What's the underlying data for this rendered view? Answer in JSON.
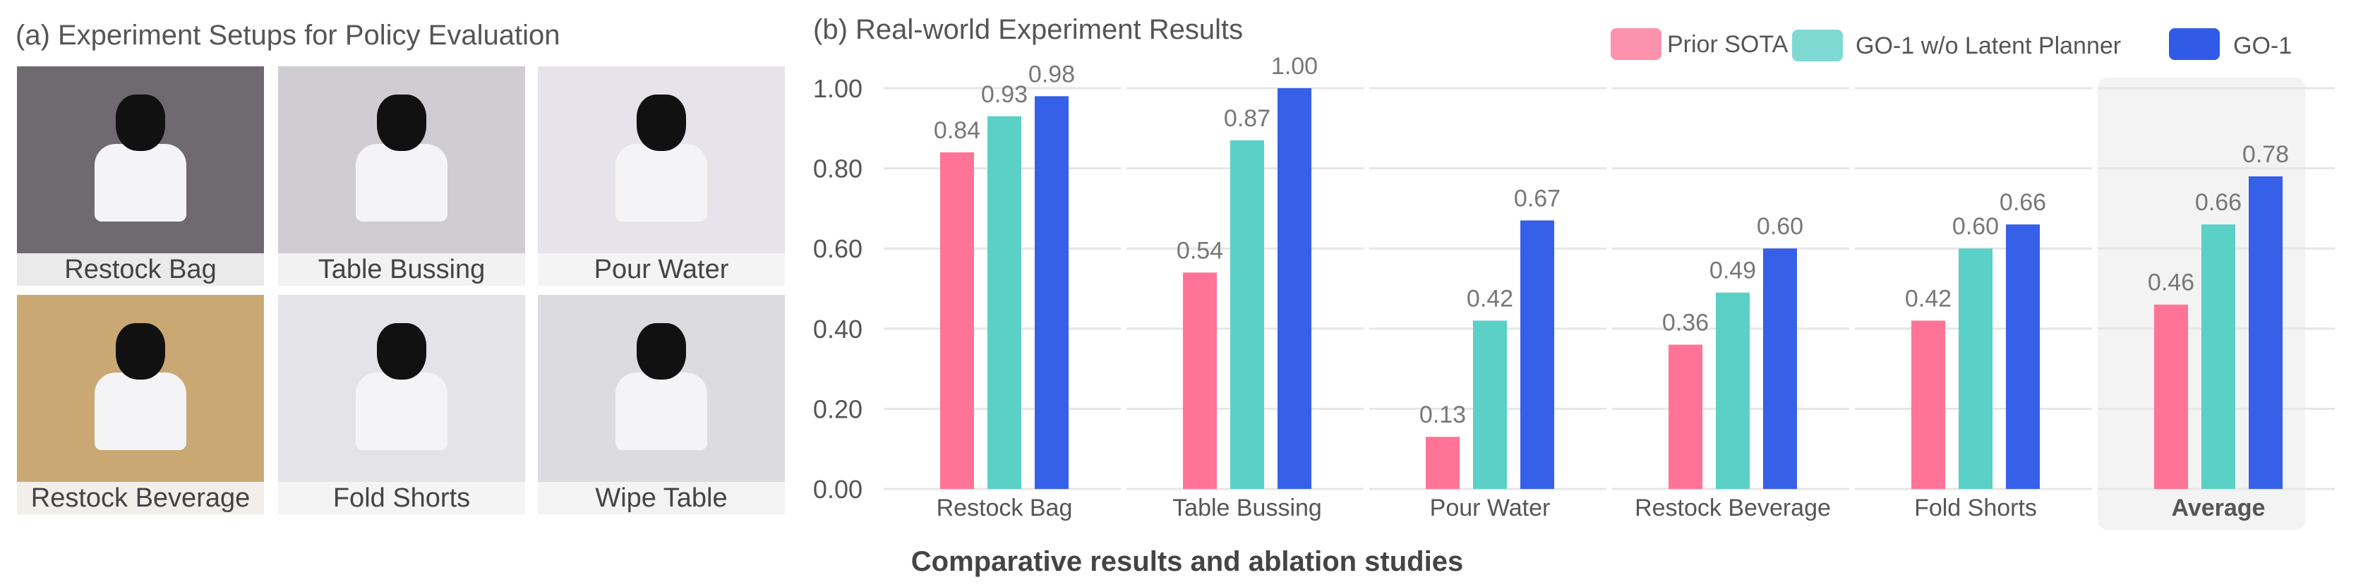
{
  "panel_a": {
    "title": "(a) Experiment Setups for Policy Evaluation",
    "photos": [
      {
        "label": "Restock Bag",
        "bg": "#6f6a70"
      },
      {
        "label": "Table Bussing",
        "bg": "#cfcdd2"
      },
      {
        "label": "Pour Water",
        "bg": "#e6e4ea"
      },
      {
        "label": "Restock Beverage",
        "bg": "#c9a873"
      },
      {
        "label": "Fold Shorts",
        "bg": "#e4e3e8"
      },
      {
        "label": "Wipe Table",
        "bg": "#dcdbe0"
      }
    ]
  },
  "chart_data": {
    "type": "bar",
    "title": "(b) Real-world Experiment Results",
    "caption": "Comparative results and ablation studies",
    "categories": [
      "Restock Bag",
      "Table Bussing",
      "Pour Water",
      "Restock Beverage",
      "Fold Shorts",
      "Average"
    ],
    "highlighted_category": "Average",
    "series": [
      {
        "name": "Prior SOTA",
        "color": "#ff6f93",
        "legend_color": "#fd92ad",
        "values": [
          0.84,
          0.54,
          0.13,
          0.36,
          0.42,
          0.46
        ]
      },
      {
        "name": "GO-1 w/o Latent Planner",
        "color": "#56cec4",
        "legend_color": "#7fd9d3",
        "values": [
          0.93,
          0.87,
          0.42,
          0.49,
          0.6,
          0.66
        ]
      },
      {
        "name": "GO-1",
        "color": "#2f5be6",
        "legend_color": "#2f5be6",
        "values": [
          0.98,
          1.0,
          0.67,
          0.6,
          0.66,
          0.78
        ]
      }
    ],
    "value_labels": [
      [
        "0.84",
        "0.54",
        "0.13",
        "0.36",
        "0.42",
        "0.46"
      ],
      [
        "0.93",
        "0.87",
        "0.42",
        "0.49",
        "0.60",
        "0.66"
      ],
      [
        "0.98",
        "1.00",
        "0.67",
        "0.60",
        "0.66",
        "0.78"
      ]
    ],
    "yticks": [
      "0.00",
      "0.20",
      "0.40",
      "0.60",
      "0.80",
      "1.00"
    ],
    "ylim": [
      0,
      1
    ],
    "grid": true,
    "legend_position": "top-right",
    "xlabel": "",
    "ylabel": ""
  }
}
